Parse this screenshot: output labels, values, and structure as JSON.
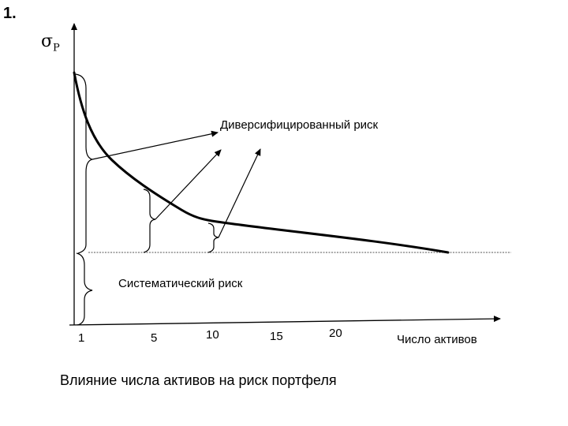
{
  "slide": {
    "number": "1.",
    "caption": "Влияние числа активов на риск портфеля"
  },
  "diagram": {
    "y_axis_label": "σ",
    "y_axis_subscript": "P",
    "x_axis_label": "Число активов",
    "x_ticks": [
      "1",
      "5",
      "10",
      "15",
      "20"
    ],
    "labels": {
      "diversified": "Диверсифицированный риск",
      "systematic": "Систематический риск"
    }
  }
}
